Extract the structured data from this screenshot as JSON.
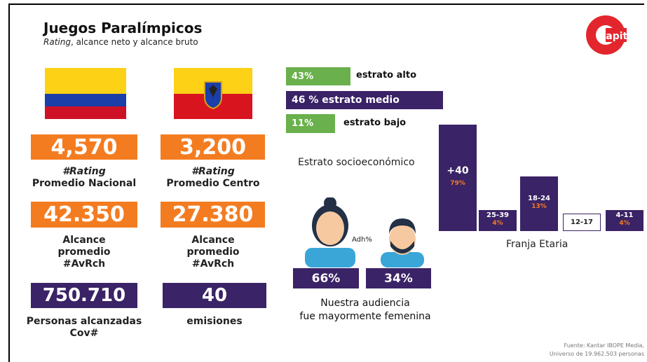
{
  "header": {
    "title": "Juegos Paralímpicos",
    "subtitle_italic": "Rating",
    "subtitle_rest": ", alcance neto y alcance bruto",
    "logo": "Capital"
  },
  "stats": [
    {
      "value": "4,570",
      "lines": [
        "#Rating",
        "Promedio Nacional"
      ]
    },
    {
      "value": "3,200",
      "lines": [
        "#Rating",
        "Promedio Centro"
      ]
    },
    {
      "value": "42.350",
      "lines": [
        "Alcance",
        "promedio",
        "#AvRch"
      ]
    },
    {
      "value": "27.380",
      "lines": [
        "Alcance",
        "promedio",
        "#AvRch"
      ]
    },
    {
      "value": "750.710",
      "lines": [
        "Personas alcanzadas",
        "Cov#"
      ]
    },
    {
      "value": "40",
      "lines": [
        "emisiones"
      ]
    }
  ],
  "strata": {
    "title": "Estrato socioeconómico",
    "items": [
      {
        "percent": "43%",
        "name": "estrato alto"
      },
      {
        "percent": "46 %",
        "name": "estrato medio"
      },
      {
        "percent": "11%",
        "name": "estrato bajo"
      }
    ]
  },
  "age": {
    "title": "Franja Etaria",
    "groups": [
      {
        "name": "+40",
        "percent": "79%"
      },
      {
        "name": "25-39",
        "percent": "4%"
      },
      {
        "name": "18-24",
        "percent": "13%"
      },
      {
        "name": "12-17"
      },
      {
        "name": "4-11",
        "percent": "4%"
      }
    ]
  },
  "audience": {
    "note": "Adh%",
    "female": "66%",
    "male": "34%",
    "caption": [
      "Nuestra audiencia",
      "fue mayormente femenina"
    ]
  },
  "footer": [
    "Fuente: Kantar IBOPE Media,",
    "Universo de 19.962.503 personas"
  ]
}
